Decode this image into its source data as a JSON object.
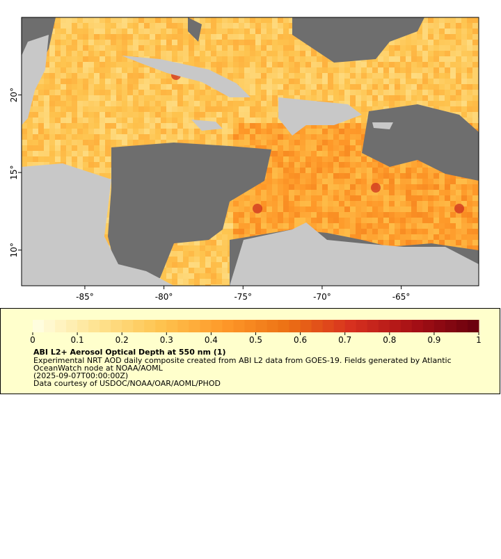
{
  "map": {
    "xlim": [
      -89,
      -60.1
    ],
    "ylim": [
      7.7,
      25
    ],
    "xticks": [
      {
        "value": -85,
        "label": "-85°"
      },
      {
        "value": -80,
        "label": "-80°"
      },
      {
        "value": -75,
        "label": "-75°"
      },
      {
        "value": -70,
        "label": "-70°"
      },
      {
        "value": -65,
        "label": "-65°"
      }
    ],
    "yticks": [
      {
        "value": 10,
        "label": "10°"
      },
      {
        "value": 15,
        "label": "15°"
      },
      {
        "value": 20,
        "label": "20°"
      }
    ]
  },
  "colorbar": {
    "range": [
      0,
      1
    ],
    "ticks": [
      0,
      0.1,
      0.2,
      0.3,
      0.4,
      0.5,
      0.6,
      0.7,
      0.8,
      0.9,
      1
    ]
  },
  "legend": {
    "title": "ABI L2+ Aerosol Optical Depth at 550 nm (1)",
    "lines": [
      "Experimental NRT AOD daily composite created from ABI L2 data from GOES-19. Fields generated by Atlantic",
      "OceanWatch node at NOAA/AOML",
      "(2025-09-07T00:00:00Z)",
      "Data courtesy of USDOC/NOAA/OAR/AOML/PHOD"
    ]
  }
}
